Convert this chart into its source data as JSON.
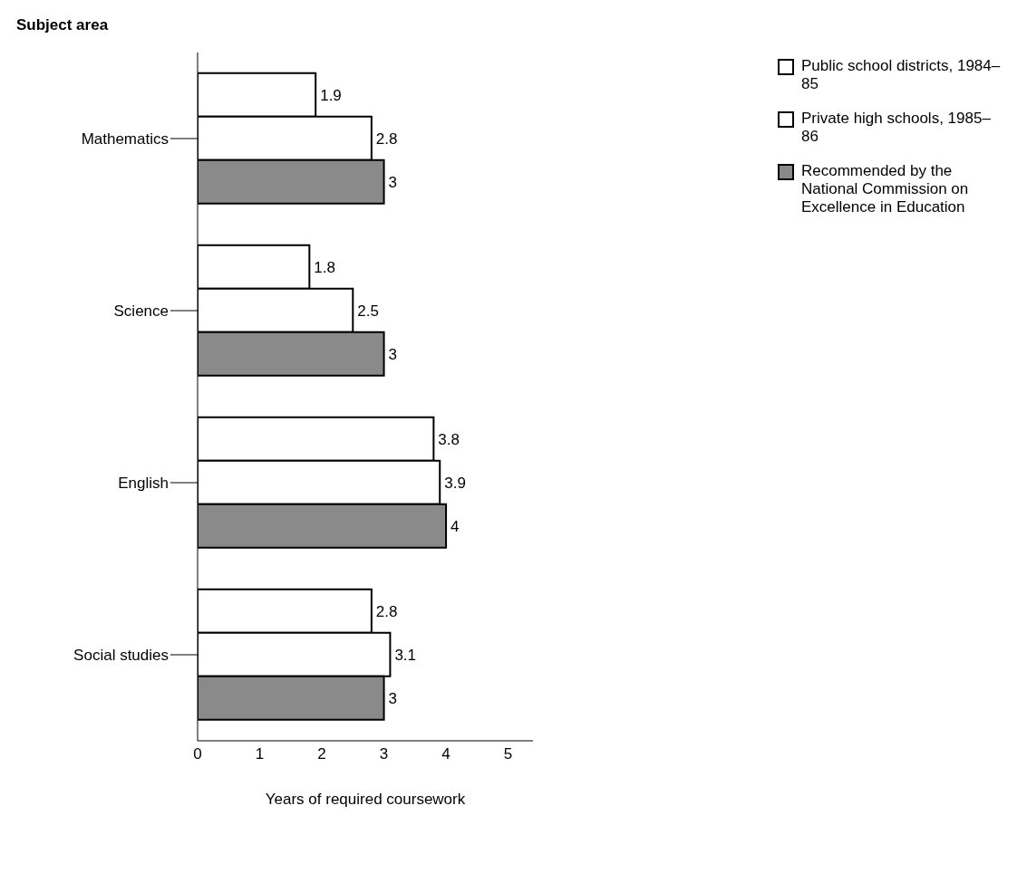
{
  "chart_data": {
    "type": "bar",
    "orientation": "horizontal",
    "ylabel": "Subject area",
    "xlabel": "Years of required coursework",
    "categories": [
      "Mathematics",
      "Science",
      "English",
      "Social studies"
    ],
    "series": [
      {
        "name": "Public school districts, 1984–85",
        "color": "#ffffff",
        "values": [
          1.9,
          1.8,
          3.8,
          2.8
        ]
      },
      {
        "name": "Private high schools, 1985–86",
        "color": "#ffffff",
        "values": [
          2.8,
          2.5,
          3.9,
          3.1
        ]
      },
      {
        "name": "Recommended by the National Commission on Excellence in Education",
        "color": "#8a8a8a",
        "values": [
          3,
          3,
          4,
          3
        ]
      }
    ],
    "xlim": [
      0,
      5.4
    ],
    "xticks": [
      0,
      1,
      2,
      3,
      4,
      5
    ],
    "data_labels": true,
    "grid": false,
    "legend": "top right"
  }
}
